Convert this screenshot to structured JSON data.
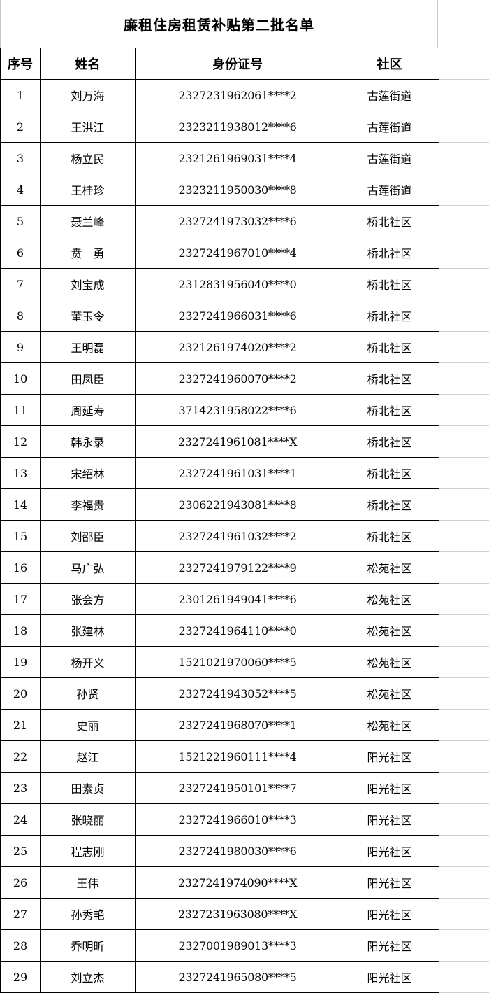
{
  "title": "廉租住房租赁补贴第二批名单",
  "headers": [
    "序号",
    "姓名",
    "身份证号",
    "社区"
  ],
  "rows": [
    [
      "1",
      "刘万海",
      "2327231962061****2",
      "古莲街道"
    ],
    [
      "2",
      "王洪江",
      "2323211938012****6",
      "古莲街道"
    ],
    [
      "3",
      "杨立民",
      "2321261969031****4",
      "古莲街道"
    ],
    [
      "4",
      "王桂珍",
      "2323211950030****8",
      "古莲街道"
    ],
    [
      "5",
      "聂兰峰",
      "2327241973032****6",
      "桥北社区"
    ],
    [
      "6",
      "贲　勇",
      "2327241967010****4",
      "桥北社区"
    ],
    [
      "7",
      "刘宝成",
      "2312831956040****0",
      "桥北社区"
    ],
    [
      "8",
      "董玉令",
      "2327241966031****6",
      "桥北社区"
    ],
    [
      "9",
      "王明磊",
      "2321261974020****2",
      "桥北社区"
    ],
    [
      "10",
      "田凤臣",
      "2327241960070****2",
      "桥北社区"
    ],
    [
      "11",
      "周延寿",
      "3714231958022****6",
      "桥北社区"
    ],
    [
      "12",
      "韩永录",
      "2327241961081****X",
      "桥北社区"
    ],
    [
      "13",
      "宋绍林",
      "2327241961031****1",
      "桥北社区"
    ],
    [
      "14",
      "李福贵",
      "2306221943081****8",
      "桥北社区"
    ],
    [
      "15",
      "刘邵臣",
      "2327241961032****2",
      "桥北社区"
    ],
    [
      "16",
      "马广弘",
      "2327241979122****9",
      "松苑社区"
    ],
    [
      "17",
      "张会方",
      "2301261949041****6",
      "松苑社区"
    ],
    [
      "18",
      "张建林",
      "2327241964110****0",
      "松苑社区"
    ],
    [
      "19",
      "杨开义",
      "1521021970060****5",
      "松苑社区"
    ],
    [
      "20",
      "孙贤",
      "2327241943052****5",
      "松苑社区"
    ],
    [
      "21",
      "史丽",
      "2327241968070****1",
      "松苑社区"
    ],
    [
      "22",
      "赵江",
      "1521221960111****4",
      "阳光社区"
    ],
    [
      "23",
      "田素贞",
      "2327241950101****7",
      "阳光社区"
    ],
    [
      "24",
      "张晓丽",
      "2327241966010****3",
      "阳光社区"
    ],
    [
      "25",
      "程志刚",
      "2327241980030****6",
      "阳光社区"
    ],
    [
      "26",
      "王伟",
      "2327241974090****X",
      "阳光社区"
    ],
    [
      "27",
      "孙秀艳",
      "2327231963080****X",
      "阳光社区"
    ],
    [
      "28",
      "乔明昕",
      "2327001989013****3",
      "阳光社区"
    ],
    [
      "29",
      "刘立杰",
      "2327241965080****5",
      "阳光社区"
    ]
  ]
}
